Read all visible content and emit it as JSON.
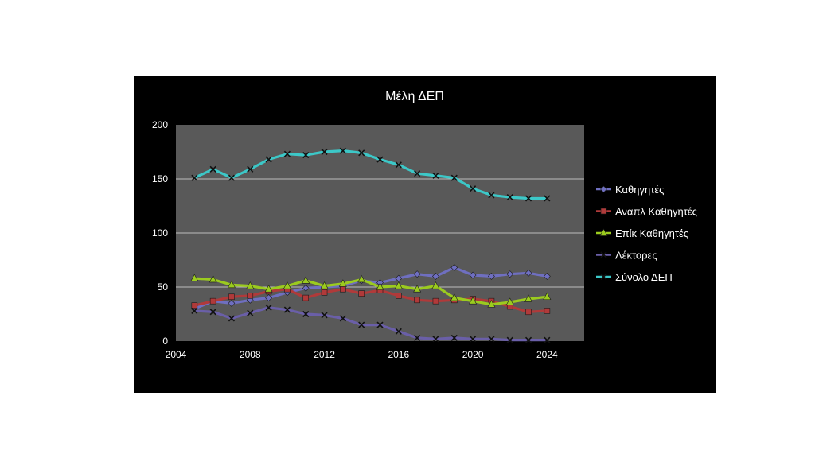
{
  "chart_data": {
    "type": "line",
    "title": "Μέλη ΔΕΠ",
    "xlabel": "",
    "ylabel": "",
    "xlim": [
      2004,
      2026
    ],
    "ylim": [
      0,
      200
    ],
    "x_ticks": [
      2004,
      2008,
      2012,
      2016,
      2020,
      2024
    ],
    "y_ticks": [
      0,
      50,
      100,
      150,
      200
    ],
    "grid": true,
    "legend_position": "right",
    "plot_background": "#595959",
    "background": "#000000",
    "x": [
      2005,
      2006,
      2007,
      2008,
      2009,
      2010,
      2011,
      2012,
      2013,
      2014,
      2015,
      2016,
      2017,
      2018,
      2019,
      2020,
      2021,
      2022,
      2023,
      2024
    ],
    "series": [
      {
        "name": "Καθηγητές",
        "color": "#6F6FC0",
        "marker": "diamond",
        "values": [
          30,
          37,
          35,
          38,
          40,
          45,
          49,
          50,
          51,
          56,
          54,
          58,
          62,
          60,
          68,
          61,
          60,
          62,
          63,
          60
        ]
      },
      {
        "name": "Αναπλ Καθηγητές",
        "color": "#B03A3A",
        "marker": "square",
        "values": [
          33,
          37,
          41,
          42,
          46,
          48,
          40,
          45,
          48,
          44,
          47,
          42,
          38,
          37,
          38,
          39,
          37,
          32,
          27,
          28
        ]
      },
      {
        "name": "Επίκ Καθηγητές",
        "color": "#9BCB1F",
        "marker": "triangle",
        "values": [
          58,
          57,
          52,
          51,
          48,
          51,
          56,
          51,
          53,
          57,
          50,
          51,
          48,
          51,
          40,
          37,
          34,
          36,
          39,
          41
        ]
      },
      {
        "name": "Λέκτορες",
        "color": "#6A5FA8",
        "marker": "x",
        "values": [
          28,
          27,
          21,
          26,
          31,
          29,
          25,
          24,
          21,
          15,
          15,
          9,
          3,
          2,
          3,
          2,
          2,
          1,
          1,
          1
        ]
      },
      {
        "name": "Σύνολο ΔΕΠ",
        "color": "#3CC8C8",
        "marker": "x",
        "values": [
          151,
          159,
          151,
          159,
          168,
          173,
          172,
          175,
          176,
          174,
          168,
          163,
          155,
          153,
          151,
          141,
          135,
          133,
          132,
          132
        ]
      }
    ]
  }
}
